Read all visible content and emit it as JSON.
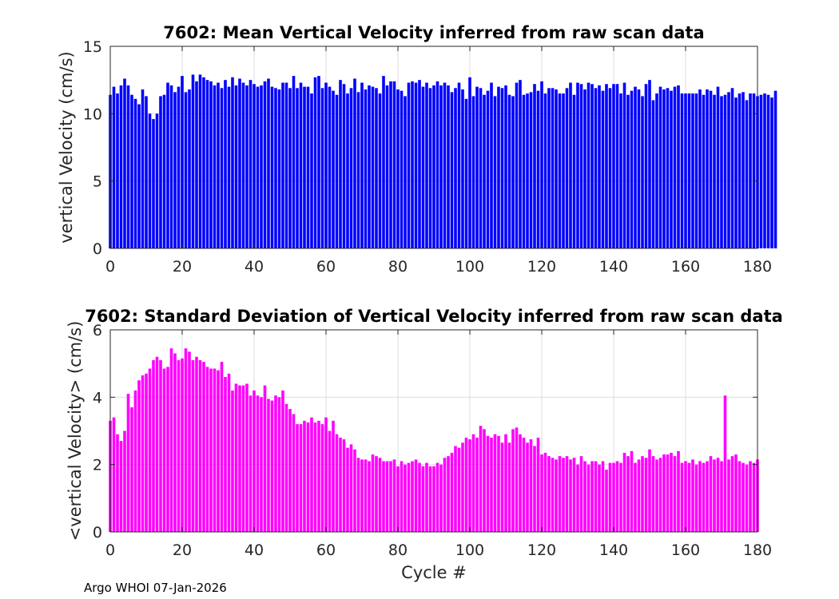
{
  "chart_data": [
    {
      "type": "bar",
      "title": "7602: Mean Vertical Velocity inferred from raw scan data",
      "xlabel": "",
      "ylabel": "vertical Velocity (cm/s)",
      "xlim": [
        0,
        180
      ],
      "ylim": [
        0,
        15
      ],
      "xticks": [
        0,
        20,
        40,
        60,
        80,
        100,
        120,
        140,
        160,
        180
      ],
      "yticks": [
        0,
        5,
        10,
        15
      ],
      "grid": true,
      "color": "#0000ff",
      "x_start": 0,
      "values": [
        11.4,
        12.0,
        11.5,
        12.1,
        12.6,
        12.1,
        11.4,
        11.1,
        10.7,
        11.8,
        11.3,
        10.0,
        9.6,
        10.0,
        11.3,
        11.4,
        12.3,
        12.1,
        11.6,
        12.0,
        12.8,
        11.6,
        11.8,
        12.9,
        12.4,
        12.9,
        12.7,
        12.5,
        12.4,
        12.1,
        12.3,
        11.9,
        12.5,
        12.0,
        12.7,
        12.1,
        12.6,
        12.3,
        12.1,
        12.5,
        12.2,
        12.0,
        12.1,
        12.4,
        12.6,
        12.0,
        11.9,
        11.8,
        12.3,
        12.3,
        11.9,
        12.8,
        11.9,
        12.3,
        12.0,
        12.0,
        11.5,
        12.7,
        12.8,
        11.9,
        12.3,
        12.0,
        11.7,
        11.4,
        12.5,
        12.2,
        11.5,
        11.9,
        12.6,
        11.6,
        12.3,
        11.8,
        12.1,
        12.0,
        11.9,
        11.5,
        12.8,
        12.1,
        12.4,
        12.4,
        11.8,
        11.7,
        11.3,
        12.3,
        12.4,
        12.3,
        12.5,
        12.0,
        12.3,
        11.9,
        12.1,
        12.4,
        12.1,
        12.3,
        12.1,
        11.6,
        11.9,
        12.3,
        11.8,
        11.1,
        12.7,
        11.3,
        12.0,
        11.9,
        11.4,
        11.7,
        12.3,
        11.3,
        12.0,
        11.9,
        12.1,
        11.4,
        11.3,
        12.3,
        12.5,
        11.4,
        11.5,
        11.6,
        12.2,
        11.7,
        12.4,
        11.5,
        11.9,
        11.9,
        11.8,
        11.5,
        11.5,
        11.9,
        12.3,
        11.4,
        12.3,
        12.2,
        11.8,
        12.3,
        12.2,
        11.9,
        12.1,
        11.7,
        12.2,
        11.9,
        12.2,
        12.2,
        11.5,
        12.3,
        11.4,
        11.7,
        12.0,
        11.8,
        11.3,
        12.2,
        12.5,
        11.0,
        11.5,
        12.0,
        11.8,
        11.9,
        11.7,
        12.0,
        12.1,
        11.5,
        11.5,
        11.5,
        11.5,
        11.5,
        11.8,
        11.4,
        11.8,
        11.7,
        11.4,
        12.0,
        11.3,
        11.4,
        11.6,
        11.9,
        11.2,
        11.5,
        11.6,
        11.0,
        11.5,
        11.5,
        11.3,
        11.4,
        11.5,
        11.4,
        11.2,
        11.7
      ]
    },
    {
      "type": "bar",
      "title": "7602: Standard Deviation of Vertical Velocity inferred from raw scan data",
      "xlabel": "Cycle #",
      "ylabel": "<vertical Velocity> (cm/s)",
      "xlim": [
        0,
        180
      ],
      "ylim": [
        0,
        6
      ],
      "xticks": [
        0,
        20,
        40,
        60,
        80,
        100,
        120,
        140,
        160,
        180
      ],
      "yticks": [
        0,
        2,
        4,
        6
      ],
      "grid": true,
      "color": "#ff00ff",
      "x_start": 0,
      "values": [
        3.3,
        3.4,
        2.9,
        2.7,
        3.0,
        4.1,
        3.7,
        4.2,
        4.5,
        4.65,
        4.7,
        4.85,
        5.1,
        5.2,
        5.1,
        4.85,
        4.9,
        5.45,
        5.3,
        5.1,
        5.15,
        5.45,
        5.35,
        5.1,
        5.2,
        5.1,
        5.05,
        4.9,
        4.85,
        4.85,
        4.8,
        5.05,
        4.6,
        4.7,
        4.2,
        4.4,
        4.35,
        4.35,
        4.4,
        4.05,
        4.2,
        4.05,
        4.0,
        4.35,
        3.95,
        3.9,
        4.05,
        4.0,
        4.2,
        3.8,
        3.65,
        3.5,
        3.2,
        3.2,
        3.3,
        3.25,
        3.4,
        3.25,
        3.3,
        3.2,
        3.4,
        3.0,
        3.3,
        2.9,
        2.8,
        2.75,
        2.5,
        2.6,
        2.45,
        2.2,
        2.15,
        2.15,
        2.1,
        2.3,
        2.25,
        2.2,
        2.1,
        2.1,
        2.1,
        2.15,
        1.95,
        2.1,
        2.0,
        2.05,
        2.1,
        2.15,
        2.05,
        1.95,
        2.05,
        1.95,
        1.95,
        2.05,
        2.0,
        2.2,
        2.25,
        2.35,
        2.55,
        2.5,
        2.65,
        2.8,
        2.75,
        2.9,
        2.8,
        3.15,
        3.05,
        2.85,
        2.8,
        2.9,
        2.85,
        2.65,
        2.9,
        2.65,
        3.05,
        3.1,
        2.9,
        2.8,
        2.65,
        2.75,
        2.55,
        2.8,
        2.3,
        2.35,
        2.25,
        2.2,
        2.15,
        2.25,
        2.2,
        2.25,
        2.15,
        2.2,
        2.0,
        2.25,
        2.1,
        2.0,
        2.1,
        2.1,
        2.0,
        2.1,
        1.85,
        2.05,
        2.05,
        2.1,
        2.05,
        2.35,
        2.25,
        2.4,
        2.05,
        2.15,
        2.25,
        2.2,
        2.45,
        2.25,
        2.15,
        2.2,
        2.3,
        2.3,
        2.35,
        2.25,
        2.4,
        2.05,
        2.1,
        2.05,
        2.15,
        2.0,
        2.1,
        2.05,
        2.1,
        2.25,
        2.15,
        2.2,
        2.1,
        4.05,
        2.15,
        2.25,
        2.3,
        2.1,
        2.05,
        2.0,
        2.1,
        2.05,
        2.15
      ]
    }
  ],
  "footer": "Argo WHOI 07-Jan-2026"
}
